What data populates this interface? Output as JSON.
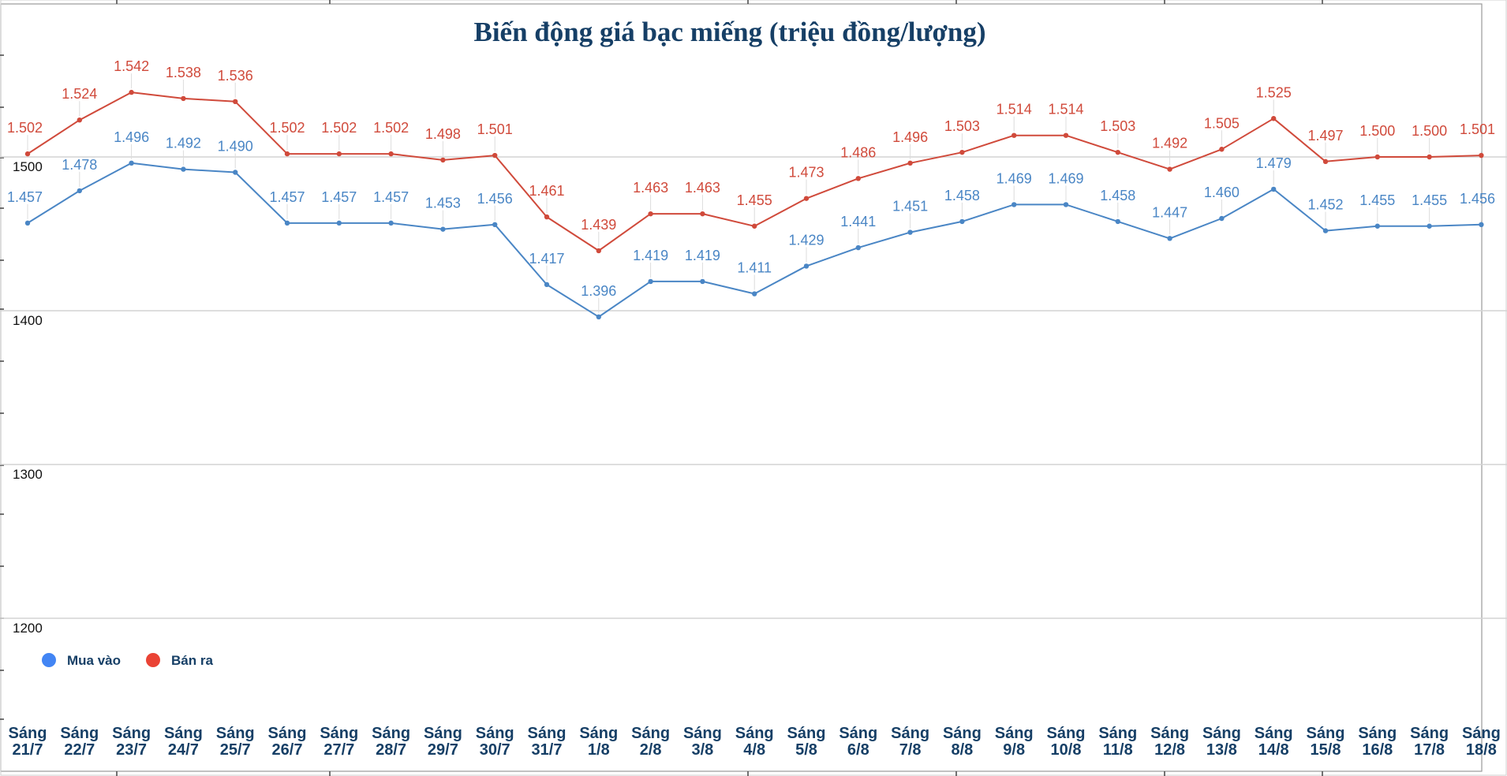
{
  "chart_data": {
    "type": "line",
    "title": "Biến động giá bạc miếng (triệu đồng/lượng)",
    "xlabel": "",
    "ylabel": "",
    "ylim": [
      1150,
      1550
    ],
    "y_ticks": [
      1200,
      1300,
      1400,
      1500
    ],
    "grid": true,
    "legend_position": "bottom-left",
    "categories": [
      [
        "Sáng",
        "21/7"
      ],
      [
        "Sáng",
        "22/7"
      ],
      [
        "Sáng",
        "23/7"
      ],
      [
        "Sáng",
        "24/7"
      ],
      [
        "Sáng",
        "25/7"
      ],
      [
        "Sáng",
        "26/7"
      ],
      [
        "Sáng",
        "27/7"
      ],
      [
        "Sáng",
        "28/7"
      ],
      [
        "Sáng",
        "29/7"
      ],
      [
        "Sáng",
        "30/7"
      ],
      [
        "Sáng",
        "31/7"
      ],
      [
        "Sáng",
        "1/8"
      ],
      [
        "Sáng",
        "2/8"
      ],
      [
        "Sáng",
        "3/8"
      ],
      [
        "Sáng",
        "4/8"
      ],
      [
        "Sáng",
        "5/8"
      ],
      [
        "Sáng",
        "6/8"
      ],
      [
        "Sáng",
        "7/8"
      ],
      [
        "Sáng",
        "8/8"
      ],
      [
        "Sáng",
        "9/8"
      ],
      [
        "Sáng",
        "10/8"
      ],
      [
        "Sáng",
        "11/8"
      ],
      [
        "Sáng",
        "12/8"
      ],
      [
        "Sáng",
        "13/8"
      ],
      [
        "Sáng",
        "14/8"
      ],
      [
        "Sáng",
        "15/8"
      ],
      [
        "Sáng",
        "16/8"
      ],
      [
        "Sáng",
        "17/8"
      ],
      [
        "Sáng",
        "18/8"
      ]
    ],
    "series": [
      {
        "name": "Mua vào",
        "color": "#4a86c5",
        "legend_color": "#4285f4",
        "values": [
          1457,
          1478,
          1496,
          1492,
          1490,
          1457,
          1457,
          1457,
          1453,
          1456,
          1417,
          1396,
          1419,
          1419,
          1411,
          1429,
          1441,
          1451,
          1458,
          1469,
          1469,
          1458,
          1447,
          1460,
          1479,
          1452,
          1455,
          1455,
          1456
        ],
        "labels": [
          "1.457",
          "1.478",
          "1.496",
          "1.492",
          "1.490",
          "1.457",
          "1.457",
          "1.457",
          "1.453",
          "1.456",
          "1.417",
          "1.396",
          "1.419",
          "1.419",
          "1.411",
          "1.429",
          "1.441",
          "1.451",
          "1.458",
          "1.469",
          "1.469",
          "1.458",
          "1.447",
          "1.460",
          "1.479",
          "1.452",
          "1.455",
          "1.455",
          "1.456"
        ]
      },
      {
        "name": "Bán ra",
        "color": "#d04a3b",
        "legend_color": "#ea4335",
        "values": [
          1502,
          1524,
          1542,
          1538,
          1536,
          1502,
          1502,
          1502,
          1498,
          1501,
          1461,
          1439,
          1463,
          1463,
          1455,
          1473,
          1486,
          1496,
          1503,
          1514,
          1514,
          1503,
          1492,
          1505,
          1525,
          1497,
          1500,
          1500,
          1501
        ],
        "labels": [
          "1.502",
          "1.524",
          "1.542",
          "1.538",
          "1.536",
          "1.502",
          "1.502",
          "1.502",
          "1.498",
          "1.501",
          "1.461",
          "1.439",
          "1.463",
          "1.463",
          "1.455",
          "1.473",
          "1.486",
          "1.496",
          "1.503",
          "1.514",
          "1.514",
          "1.503",
          "1.492",
          "1.505",
          "1.525",
          "1.497",
          "1.500",
          "1.500",
          "1.501"
        ]
      }
    ]
  }
}
